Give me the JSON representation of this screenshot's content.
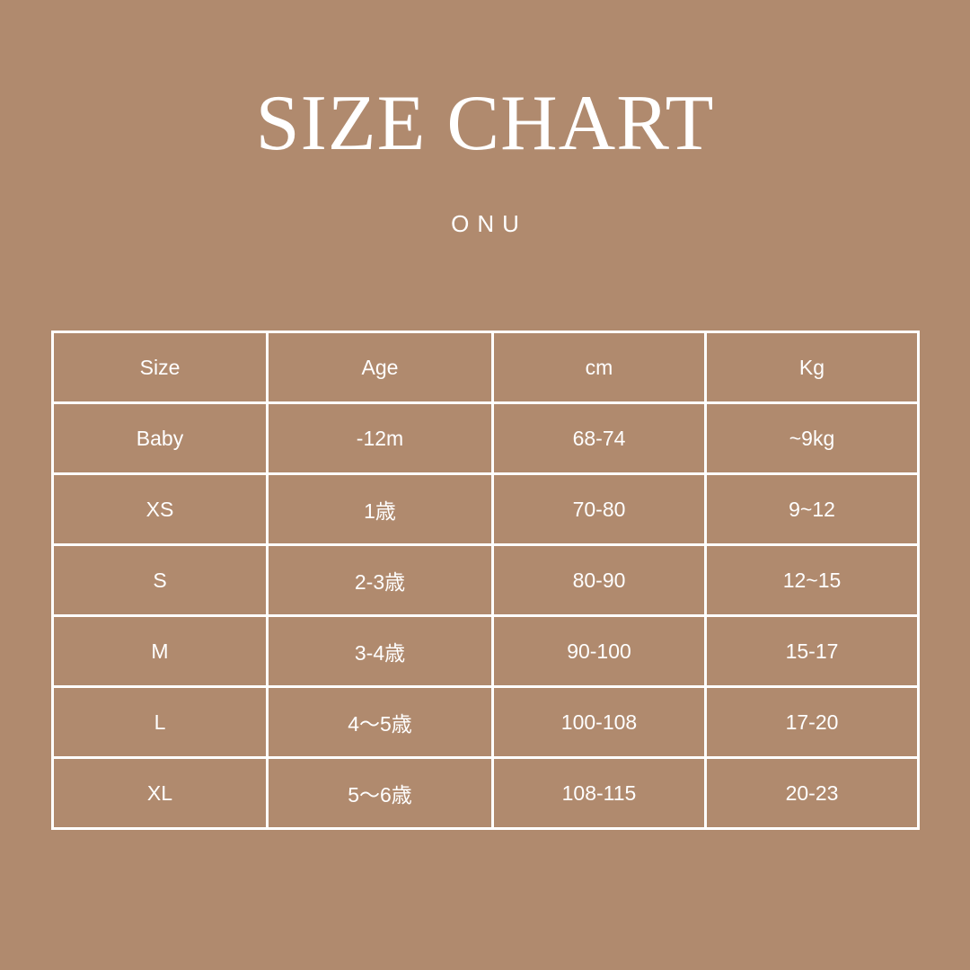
{
  "title": "SIZE CHART",
  "brand": "ONU",
  "colors": {
    "background": "#B08A6E",
    "foreground": "#FFFFFF"
  },
  "table": {
    "headers": [
      "Size",
      "Age",
      "cm",
      "Kg"
    ],
    "rows": [
      [
        "Baby",
        "-12m",
        "68-74",
        "~9kg"
      ],
      [
        "XS",
        "1歳",
        "70-80",
        "9~12"
      ],
      [
        "S",
        "2-3歳",
        "80-90",
        "12~15"
      ],
      [
        "M",
        "3-4歳",
        "90-100",
        "15-17"
      ],
      [
        "L",
        "4〜5歳",
        "100-108",
        "17-20"
      ],
      [
        "XL",
        "5〜6歳",
        "108-115",
        "20-23"
      ]
    ]
  }
}
